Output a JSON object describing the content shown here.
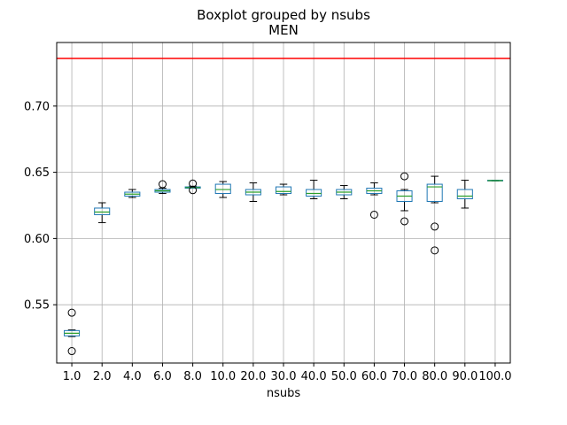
{
  "chart_data": {
    "type": "boxplot",
    "title": "Boxplot grouped by nsubs",
    "subtitle": "MEN",
    "xlabel": "nsubs",
    "ylabel": "",
    "categories": [
      "1.0",
      "2.0",
      "4.0",
      "6.0",
      "8.0",
      "10.0",
      "20.0",
      "30.0",
      "40.0",
      "50.0",
      "60.0",
      "70.0",
      "80.0",
      "90.0",
      "100.0"
    ],
    "boxes": [
      {
        "whislo": 0.526,
        "q1": 0.5265,
        "med": 0.5285,
        "q3": 0.5305,
        "whishi": 0.531,
        "fliers": [
          0.544,
          0.515
        ]
      },
      {
        "whislo": 0.612,
        "q1": 0.618,
        "med": 0.62,
        "q3": 0.623,
        "whishi": 0.627,
        "fliers": []
      },
      {
        "whislo": 0.631,
        "q1": 0.632,
        "med": 0.6335,
        "q3": 0.635,
        "whishi": 0.637,
        "fliers": []
      },
      {
        "whislo": 0.634,
        "q1": 0.635,
        "med": 0.636,
        "q3": 0.637,
        "whishi": 0.638,
        "fliers": [
          0.641
        ]
      },
      {
        "whislo": 0.638,
        "q1": 0.638,
        "med": 0.6385,
        "q3": 0.639,
        "whishi": 0.6395,
        "fliers": [
          0.6415,
          0.6365
        ]
      },
      {
        "whislo": 0.631,
        "q1": 0.634,
        "med": 0.637,
        "q3": 0.641,
        "whishi": 0.643,
        "fliers": []
      },
      {
        "whislo": 0.628,
        "q1": 0.633,
        "med": 0.635,
        "q3": 0.637,
        "whishi": 0.642,
        "fliers": []
      },
      {
        "whislo": 0.633,
        "q1": 0.634,
        "med": 0.6355,
        "q3": 0.639,
        "whishi": 0.641,
        "fliers": []
      },
      {
        "whislo": 0.63,
        "q1": 0.632,
        "med": 0.634,
        "q3": 0.637,
        "whishi": 0.644,
        "fliers": []
      },
      {
        "whislo": 0.63,
        "q1": 0.633,
        "med": 0.635,
        "q3": 0.637,
        "whishi": 0.64,
        "fliers": []
      },
      {
        "whislo": 0.633,
        "q1": 0.634,
        "med": 0.636,
        "q3": 0.638,
        "whishi": 0.642,
        "fliers": [
          0.618
        ]
      },
      {
        "whislo": 0.621,
        "q1": 0.628,
        "med": 0.632,
        "q3": 0.636,
        "whishi": 0.637,
        "fliers": [
          0.647,
          0.613
        ]
      },
      {
        "whislo": 0.627,
        "q1": 0.628,
        "med": 0.639,
        "q3": 0.641,
        "whishi": 0.647,
        "fliers": [
          0.609,
          0.591
        ]
      },
      {
        "whislo": 0.623,
        "q1": 0.63,
        "med": 0.632,
        "q3": 0.637,
        "whishi": 0.644,
        "fliers": []
      },
      {
        "whislo": 0.6435,
        "q1": 0.6435,
        "med": 0.6437,
        "q3": 0.644,
        "whishi": 0.644,
        "fliers": []
      }
    ],
    "reference_line": {
      "y": 0.736,
      "color": "#ff0000"
    },
    "ylim": [
      0.506,
      0.748
    ],
    "yticks": [
      "0.55",
      "0.60",
      "0.65",
      "0.70"
    ],
    "grid": true,
    "colors": {
      "box": "#1f77b4",
      "median": "#2ca02c",
      "whisker": "#000000",
      "grid": "#b0b0b0",
      "flier": "#000000"
    }
  }
}
